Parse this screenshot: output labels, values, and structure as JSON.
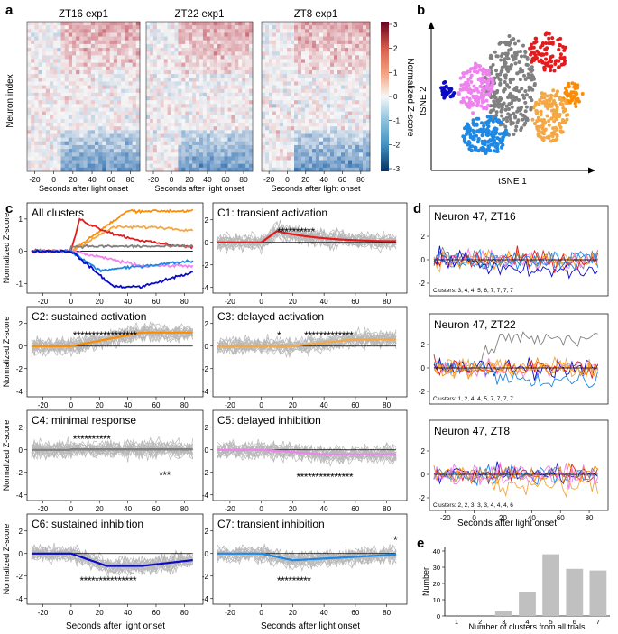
{
  "panel_letters": {
    "a": "a",
    "b": "b",
    "c": "c",
    "d": "d",
    "e": "e"
  },
  "heatmaps": {
    "titles": [
      "ZT16 exp1",
      "ZT22 exp1",
      "ZT8 exp1"
    ],
    "ylabel": "Neuron index",
    "xlabel": "Seconds after light onset",
    "xticks": [
      "-20",
      "0",
      "20",
      "40",
      "60",
      "80"
    ],
    "colorbar_label": "Normalized Z-score",
    "colorbar_ticks": [
      "3",
      "2",
      "1",
      "0",
      "-1",
      "-2",
      "-3"
    ]
  },
  "tsne": {
    "xlabel": "tSNE 1",
    "ylabel": "tSNE 2",
    "cluster_colors": [
      "#e41a1c",
      "#ff8c00",
      "#f4a742",
      "#808080",
      "#ee82ee",
      "#1e88e5",
      "#0a0ac8"
    ]
  },
  "cluster_panels": {
    "ylabel": "Normalized Z-score",
    "xlabel": "Seconds after light onset",
    "xticks": [
      "-20",
      "0",
      "20",
      "40",
      "60",
      "80"
    ],
    "yticks": [
      "2",
      "0",
      "-2",
      "-4"
    ],
    "yticks_all": [
      "1",
      "0",
      "-1"
    ],
    "titles": [
      "All clusters",
      "C1: transient activation",
      "C2: sustained activation",
      "C3: delayed activation",
      "C4: minimal response",
      "C5: delayed inhibition",
      "C6: sustained inhibition",
      "C7: transient inhibition"
    ],
    "stars": {
      "c1": "**********",
      "c2": "*****************",
      "c3a": "*",
      "c3b": "*************",
      "c4a": "**********",
      "c4b": "***",
      "c5": "***************",
      "c6": "***************",
      "c7a": "*********",
      "c7b": "*"
    }
  },
  "neuron_panels": {
    "titles": [
      "Neuron 47, ZT16",
      "Neuron 47, ZT22",
      "Neuron 47, ZT8"
    ],
    "clusters": [
      "Clusters: 3, 4, 4, 5, 6, 7, 7, 7, 7",
      "Clusters: 1, 2, 4, 4, 5, 7, 7, 7, 7",
      "Clusters: 2, 2, 3, 3, 3, 4, 4, 4, 6"
    ],
    "yticks": [
      "2",
      "0",
      "-2"
    ],
    "xticks": [
      "-20",
      "0",
      "20",
      "40",
      "60",
      "80"
    ],
    "xlabel": "Seconds after light onset"
  },
  "chart_data": {
    "type": "bar",
    "title": "",
    "categories": [
      "1",
      "2",
      "3",
      "4",
      "5",
      "6",
      "7"
    ],
    "values": [
      0,
      0,
      3,
      15,
      38,
      29,
      28
    ],
    "xlabel": "Number of clusters from all trials",
    "ylabel": "Number",
    "ylim": [
      0,
      40
    ],
    "yticks": [
      "0",
      "10",
      "20",
      "30",
      "40"
    ],
    "bar_color": "#c0c0c0"
  }
}
